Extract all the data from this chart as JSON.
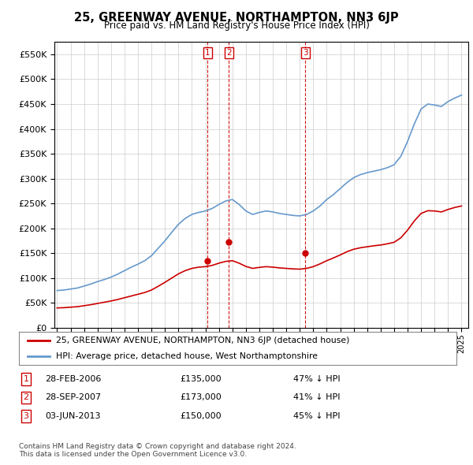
{
  "title": "25, GREENWAY AVENUE, NORTHAMPTON, NN3 6JP",
  "subtitle": "Price paid vs. HM Land Registry's House Price Index (HPI)",
  "legend_line1": "25, GREENWAY AVENUE, NORTHAMPTON, NN3 6JP (detached house)",
  "legend_line2": "HPI: Average price, detached house, West Northamptonshire",
  "footnote1": "Contains HM Land Registry data © Crown copyright and database right 2024.",
  "footnote2": "This data is licensed under the Open Government Licence v3.0.",
  "table_rows": [
    {
      "num": "1",
      "date": "28-FEB-2006",
      "price": "£135,000",
      "hpi": "47% ↓ HPI"
    },
    {
      "num": "2",
      "date": "28-SEP-2007",
      "price": "£173,000",
      "hpi": "41% ↓ HPI"
    },
    {
      "num": "3",
      "date": "03-JUN-2013",
      "price": "£150,000",
      "hpi": "45% ↓ HPI"
    }
  ],
  "sale_dates_num": [
    2006.16,
    2007.75,
    2013.42
  ],
  "sale_prices": [
    135000,
    173000,
    150000
  ],
  "red_line_color": "#cc0000",
  "blue_line_color": "#6699cc",
  "vline_color": "#cc0000",
  "grid_color": "#cccccc",
  "background_color": "#ffffff",
  "ylim": [
    0,
    575000
  ],
  "yticks": [
    0,
    50000,
    100000,
    150000,
    200000,
    250000,
    300000,
    350000,
    400000,
    450000,
    500000,
    550000
  ],
  "xlim_start": 1994.8,
  "xlim_end": 2025.5,
  "years_hpi": [
    1995.0,
    1995.5,
    1996.0,
    1996.5,
    1997.0,
    1997.5,
    1998.0,
    1998.5,
    1999.0,
    1999.5,
    2000.0,
    2000.5,
    2001.0,
    2001.5,
    2002.0,
    2002.5,
    2003.0,
    2003.5,
    2004.0,
    2004.5,
    2005.0,
    2005.5,
    2006.0,
    2006.5,
    2007.0,
    2007.5,
    2008.0,
    2008.5,
    2009.0,
    2009.5,
    2010.0,
    2010.5,
    2011.0,
    2011.5,
    2012.0,
    2012.5,
    2013.0,
    2013.5,
    2014.0,
    2014.5,
    2015.0,
    2015.5,
    2016.0,
    2016.5,
    2017.0,
    2017.5,
    2018.0,
    2018.5,
    2019.0,
    2019.5,
    2020.0,
    2020.5,
    2021.0,
    2021.5,
    2022.0,
    2022.5,
    2023.0,
    2023.5,
    2024.0,
    2024.5,
    2025.0
  ],
  "hpi_values": [
    75000,
    76000,
    78000,
    80000,
    84000,
    88000,
    93000,
    97000,
    102000,
    108000,
    115000,
    122000,
    128000,
    135000,
    145000,
    160000,
    175000,
    192000,
    208000,
    220000,
    228000,
    232000,
    235000,
    240000,
    248000,
    255000,
    258000,
    248000,
    235000,
    228000,
    232000,
    235000,
    233000,
    230000,
    228000,
    226000,
    225000,
    228000,
    235000,
    245000,
    258000,
    268000,
    280000,
    292000,
    302000,
    308000,
    312000,
    315000,
    318000,
    322000,
    328000,
    345000,
    375000,
    410000,
    440000,
    450000,
    448000,
    445000,
    455000,
    462000,
    468000
  ],
  "years_red": [
    1995.0,
    1995.5,
    1996.0,
    1996.5,
    1997.0,
    1997.5,
    1998.0,
    1998.5,
    1999.0,
    1999.5,
    2000.0,
    2000.5,
    2001.0,
    2001.5,
    2002.0,
    2002.5,
    2003.0,
    2003.5,
    2004.0,
    2004.5,
    2005.0,
    2005.5,
    2006.0,
    2006.5,
    2007.0,
    2007.5,
    2008.0,
    2008.5,
    2009.0,
    2009.5,
    2010.0,
    2010.5,
    2011.0,
    2011.5,
    2012.0,
    2012.5,
    2013.0,
    2013.5,
    2014.0,
    2014.5,
    2015.0,
    2015.5,
    2016.0,
    2016.5,
    2017.0,
    2017.5,
    2018.0,
    2018.5,
    2019.0,
    2019.5,
    2020.0,
    2020.5,
    2021.0,
    2021.5,
    2022.0,
    2022.5,
    2023.0,
    2023.5,
    2024.0,
    2024.5,
    2025.0
  ],
  "red_values": [
    40000,
    40500,
    41500,
    42500,
    44500,
    46500,
    49000,
    51500,
    54000,
    57000,
    60500,
    64000,
    67500,
    71000,
    76000,
    83500,
    91500,
    100000,
    108500,
    115000,
    119500,
    122000,
    123000,
    125500,
    130000,
    133500,
    135000,
    130000,
    123500,
    119500,
    121500,
    123000,
    122000,
    120500,
    119500,
    118500,
    118000,
    119500,
    123000,
    128500,
    135000,
    140500,
    146500,
    153000,
    158000,
    161000,
    163000,
    165000,
    166500,
    169000,
    172000,
    181000,
    196500,
    215000,
    230000,
    235500,
    235000,
    233000,
    238000,
    242000,
    245000
  ]
}
